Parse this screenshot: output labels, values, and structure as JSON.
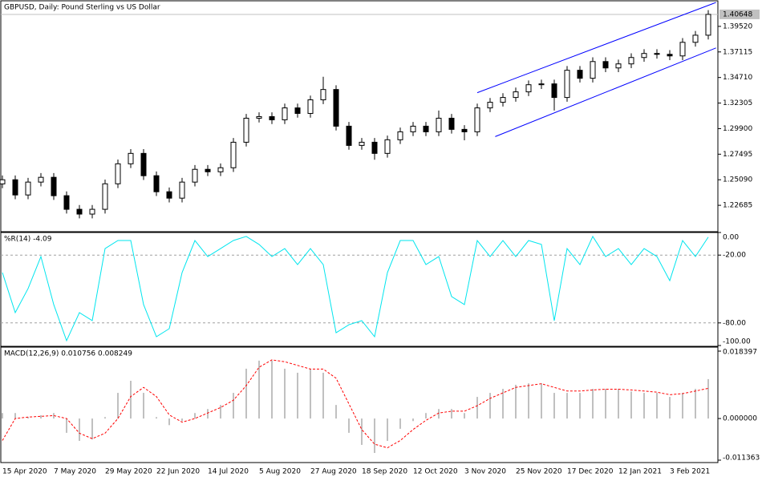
{
  "chart_data": [
    {
      "type": "candlestick",
      "title": "GBPUSD, Daily:  Pound Sterling vs US Dollar",
      "categories": [
        "15 Apr 2020",
        null,
        null,
        null,
        "7 May 2020",
        null,
        null,
        null,
        "29 May 2020",
        null,
        null,
        null,
        "22 Jun 2020",
        null,
        null,
        null,
        "14 Jul 2020",
        null,
        null,
        null,
        "5 Aug 2020",
        null,
        null,
        null,
        "27 Aug 2020",
        null,
        null,
        null,
        "18 Sep 2020",
        null,
        null,
        null,
        "12 Oct 2020",
        null,
        null,
        null,
        "3 Nov 2020",
        null,
        null,
        null,
        "25 Nov 2020",
        null,
        null,
        null,
        "17 Dec 2020",
        null,
        null,
        null,
        "12 Jan 2021",
        null,
        null,
        null,
        "3 Feb 2021",
        null,
        null,
        null
      ],
      "open": [
        1.247,
        1.2509,
        1.2366,
        1.2487,
        1.2532,
        1.2359,
        1.2231,
        1.2186,
        1.2231,
        1.2471,
        1.2659,
        1.2757,
        1.2547,
        1.2396,
        1.2336,
        1.2487,
        1.2607,
        1.2584,
        1.2622,
        1.2862,
        1.3088,
        1.3103,
        1.3073,
        1.3185,
        1.3133,
        1.3261,
        1.3358,
        1.3013,
        1.2832,
        1.2862,
        1.2757,
        1.2885,
        1.296,
        1.3013,
        1.296,
        1.3088,
        1.2983,
        1.296,
        1.3185,
        1.3238,
        1.3283,
        1.3336,
        1.3403,
        1.3411,
        1.3283,
        1.3539,
        1.3464,
        1.3621,
        1.3561,
        1.3599,
        1.3659,
        1.3697,
        1.3689,
        1.3674,
        1.3802,
        1.3869
      ],
      "high": [
        1.2549,
        1.2549,
        1.2527,
        1.2572,
        1.2572,
        1.2399,
        1.2271,
        1.2271,
        1.2511,
        1.2699,
        1.2797,
        1.2797,
        1.2587,
        1.2436,
        1.2527,
        1.2647,
        1.2647,
        1.2662,
        1.2902,
        1.3128,
        1.3143,
        1.3143,
        1.3225,
        1.3225,
        1.3301,
        1.3478,
        1.3398,
        1.3053,
        1.2902,
        1.2902,
        1.2925,
        1.3,
        1.3053,
        1.3053,
        1.316,
        1.3128,
        1.3023,
        1.3225,
        1.3278,
        1.3323,
        1.3376,
        1.3443,
        1.3451,
        1.3451,
        1.3579,
        1.3579,
        1.3661,
        1.3661,
        1.3639,
        1.3699,
        1.3737,
        1.3737,
        1.3729,
        1.3842,
        1.3909,
        1.4105
      ],
      "low": [
        1.243,
        1.2326,
        1.2326,
        1.2447,
        1.2319,
        1.2191,
        1.2146,
        1.2146,
        1.2191,
        1.2431,
        1.2619,
        1.2507,
        1.2356,
        1.2296,
        1.2296,
        1.2447,
        1.2544,
        1.2544,
        1.2582,
        1.2822,
        1.3048,
        1.3033,
        1.3033,
        1.3093,
        1.3093,
        1.3221,
        1.2973,
        1.2792,
        1.2792,
        1.2697,
        1.2717,
        1.2845,
        1.292,
        1.292,
        1.292,
        1.2943,
        1.288,
        1.292,
        1.3145,
        1.3198,
        1.3243,
        1.3296,
        1.3363,
        1.316,
        1.3243,
        1.3424,
        1.3424,
        1.3521,
        1.3521,
        1.3559,
        1.3619,
        1.3649,
        1.3634,
        1.3634,
        1.3762,
        1.3829
      ],
      "close": [
        1.2509,
        1.2366,
        1.2487,
        1.2532,
        1.2359,
        1.2231,
        1.2186,
        1.2231,
        1.2471,
        1.2659,
        1.2757,
        1.2547,
        1.2396,
        1.2336,
        1.2487,
        1.2607,
        1.2584,
        1.2622,
        1.2862,
        1.3088,
        1.3103,
        1.3073,
        1.3185,
        1.3133,
        1.3261,
        1.3358,
        1.3013,
        1.2832,
        1.2862,
        1.2757,
        1.2885,
        1.296,
        1.3013,
        1.296,
        1.3088,
        1.2983,
        1.296,
        1.3185,
        1.3238,
        1.3283,
        1.3336,
        1.3403,
        1.3411,
        1.3283,
        1.3539,
        1.3464,
        1.3621,
        1.3561,
        1.3599,
        1.3659,
        1.3697,
        1.3689,
        1.3674,
        1.3802,
        1.3869,
        1.40648
      ],
      "last_price": 1.40648,
      "trendlines": [
        {
          "x": [
            37,
            55.6
          ],
          "y": [
            1.3328,
            1.4177
          ],
          "color": "#0000ff"
        },
        {
          "x": [
            38.4,
            55.6
          ],
          "y": [
            1.2915,
            1.3749
          ],
          "color": "#0000ff"
        }
      ],
      "ylim": [
        1.2028,
        1.4185
      ],
      "yticks": [
        {
          "value": 1.3952,
          "label": "1.39520"
        },
        {
          "value": 1.37115,
          "label": "1.37115"
        },
        {
          "value": 1.3471,
          "label": "1.34710"
        },
        {
          "value": 1.32305,
          "label": "1.32305"
        },
        {
          "value": 1.299,
          "label": "1.29900"
        },
        {
          "value": 1.27495,
          "label": "1.27495"
        },
        {
          "value": 1.2509,
          "label": "1.25090"
        },
        {
          "value": 1.22685,
          "label": "1.22685"
        }
      ]
    },
    {
      "type": "line",
      "title": "%R(14) -4.09",
      "color": "#00e5ee",
      "values": [
        -35.5,
        -70.9,
        -49.6,
        -21.3,
        -63.8,
        -95.7,
        -70.9,
        -78,
        -14.2,
        -7.1,
        -7.1,
        -63.8,
        -92.2,
        -85.1,
        -35.5,
        -7.1,
        -21.3,
        -14.2,
        -7.1,
        -3.5,
        -10.6,
        -21.3,
        -14.2,
        -28.4,
        -14.2,
        -28.4,
        -88.7,
        -81.6,
        -78,
        -92.2,
        -35.5,
        -7.1,
        -7.1,
        -28.4,
        -21.3,
        -56.7,
        -63.8,
        -7.1,
        -21.3,
        -7.1,
        -21.3,
        -7.1,
        -10.6,
        -78,
        -14.2,
        -28.4,
        -3.5,
        -21.3,
        -14.2,
        -28.4,
        -14.2,
        -21.3,
        -42.6,
        -7.1,
        -21.3,
        -4.09
      ],
      "ylim": [
        -100,
        0
      ],
      "yticks": [
        {
          "value": 0,
          "label": "0.00"
        },
        {
          "value": -20,
          "label": "-20.00"
        },
        {
          "value": -80,
          "label": "-80.00"
        },
        {
          "value": -100,
          "label": "-100.00"
        }
      ],
      "levels": [
        -20,
        -80
      ]
    },
    {
      "type": "macd",
      "title": "MACD(12,26,9) 0.010756 0.008249",
      "color": "#c0c0c0",
      "values": [
        0.0015,
        0.0015,
        0.0004,
        0.0009,
        0.0015,
        -0.0039,
        -0.0061,
        -0.0057,
        0.0004,
        0.007,
        0.0103,
        0.007,
        0.0004,
        -0.0018,
        -0.0007,
        0.0015,
        0.0026,
        0.0037,
        0.007,
        0.0136,
        0.0158,
        0.0158,
        0.0136,
        0.0125,
        0.0136,
        0.0125,
        0.0037,
        -0.0039,
        -0.0072,
        -0.0094,
        -0.0061,
        -0.0028,
        -0.0007,
        0.0015,
        0.0026,
        0.0026,
        0.0015,
        0.0059,
        0.007,
        0.0081,
        0.0092,
        0.0096,
        0.0096,
        0.007,
        0.007,
        0.007,
        0.0081,
        0.0081,
        0.0081,
        0.0074,
        0.007,
        0.007,
        0.0059,
        0.007,
        0.0081,
        0.010756
      ],
      "signal": {
        "color": "#ff0000",
        "values": [
          -0.006,
          0,
          0.0004,
          0.0006,
          0.0008,
          0,
          -0.004,
          -0.0055,
          -0.004,
          0,
          0.006,
          0.0085,
          0.006,
          0.001,
          -0.001,
          0,
          0.0015,
          0.003,
          0.005,
          0.009,
          0.014,
          0.016,
          0.0155,
          0.0145,
          0.0135,
          0.0135,
          0.011,
          0.004,
          -0.003,
          -0.007,
          -0.008,
          -0.006,
          -0.003,
          -0.0005,
          0.0015,
          0.002,
          0.002,
          0.0035,
          0.0055,
          0.007,
          0.0085,
          0.009,
          0.0095,
          0.0085,
          0.0075,
          0.0075,
          0.0078,
          0.008,
          0.008,
          0.0078,
          0.0075,
          0.0072,
          0.0065,
          0.0068,
          0.0075,
          0.008249
        ]
      },
      "ylim": [
        -0.011363,
        0.018397
      ],
      "yticks": [
        {
          "value": 0.018397,
          "label": "0.018397"
        },
        {
          "value": 0,
          "label": "0.000000"
        },
        {
          "value": -0.011363,
          "label": "-0.011363"
        }
      ]
    }
  ]
}
